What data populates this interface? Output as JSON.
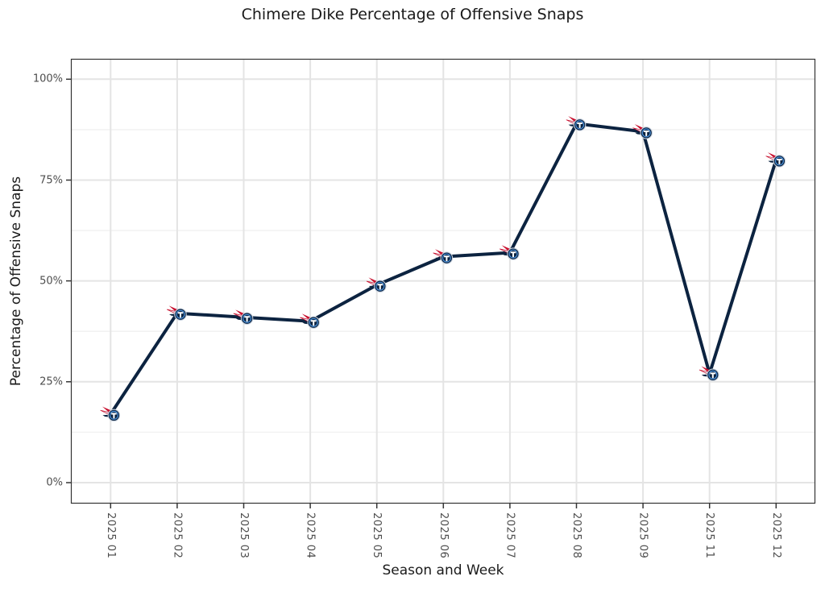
{
  "chart_data": {
    "type": "line",
    "title": "Chimere Dike Percentage of Offensive Snaps",
    "xlabel": "Season and Week",
    "ylabel": "Percentage of Offensive Snaps",
    "x": [
      "2025 01",
      "2025 02",
      "2025 03",
      "2025 04",
      "2025 05",
      "2025 06",
      "2025 07",
      "2025 08",
      "2025 09",
      "2025 11",
      "2025 12"
    ],
    "series": [
      {
        "name": "Chimere Dike",
        "team": "Tennessee Titans",
        "values": [
          17,
          42,
          41,
          40,
          49,
          56,
          57,
          89,
          87,
          27,
          80
        ]
      }
    ],
    "ylim": [
      0,
      100
    ],
    "yticks": [
      0,
      25,
      50,
      75,
      100
    ],
    "ytick_labels": [
      "0%",
      "25%",
      "50%",
      "75%",
      "100%"
    ],
    "grid": "horizontal major+minor and vertical major light-gray gridlines on white, dark panel border",
    "legend": "none",
    "marker": "tennessee-titans-logo",
    "colors": {
      "line": "#0C2340",
      "titans_navy": "#0C2340",
      "titans_red": "#C8102E",
      "titans_light_blue": "#4B92DB",
      "grid_major": "#E4E4E4",
      "grid_minor": "#F1F1F1",
      "axis_text": "#4D4D4D",
      "title_text": "#1A1A1A",
      "panel_border": "#343434"
    }
  }
}
